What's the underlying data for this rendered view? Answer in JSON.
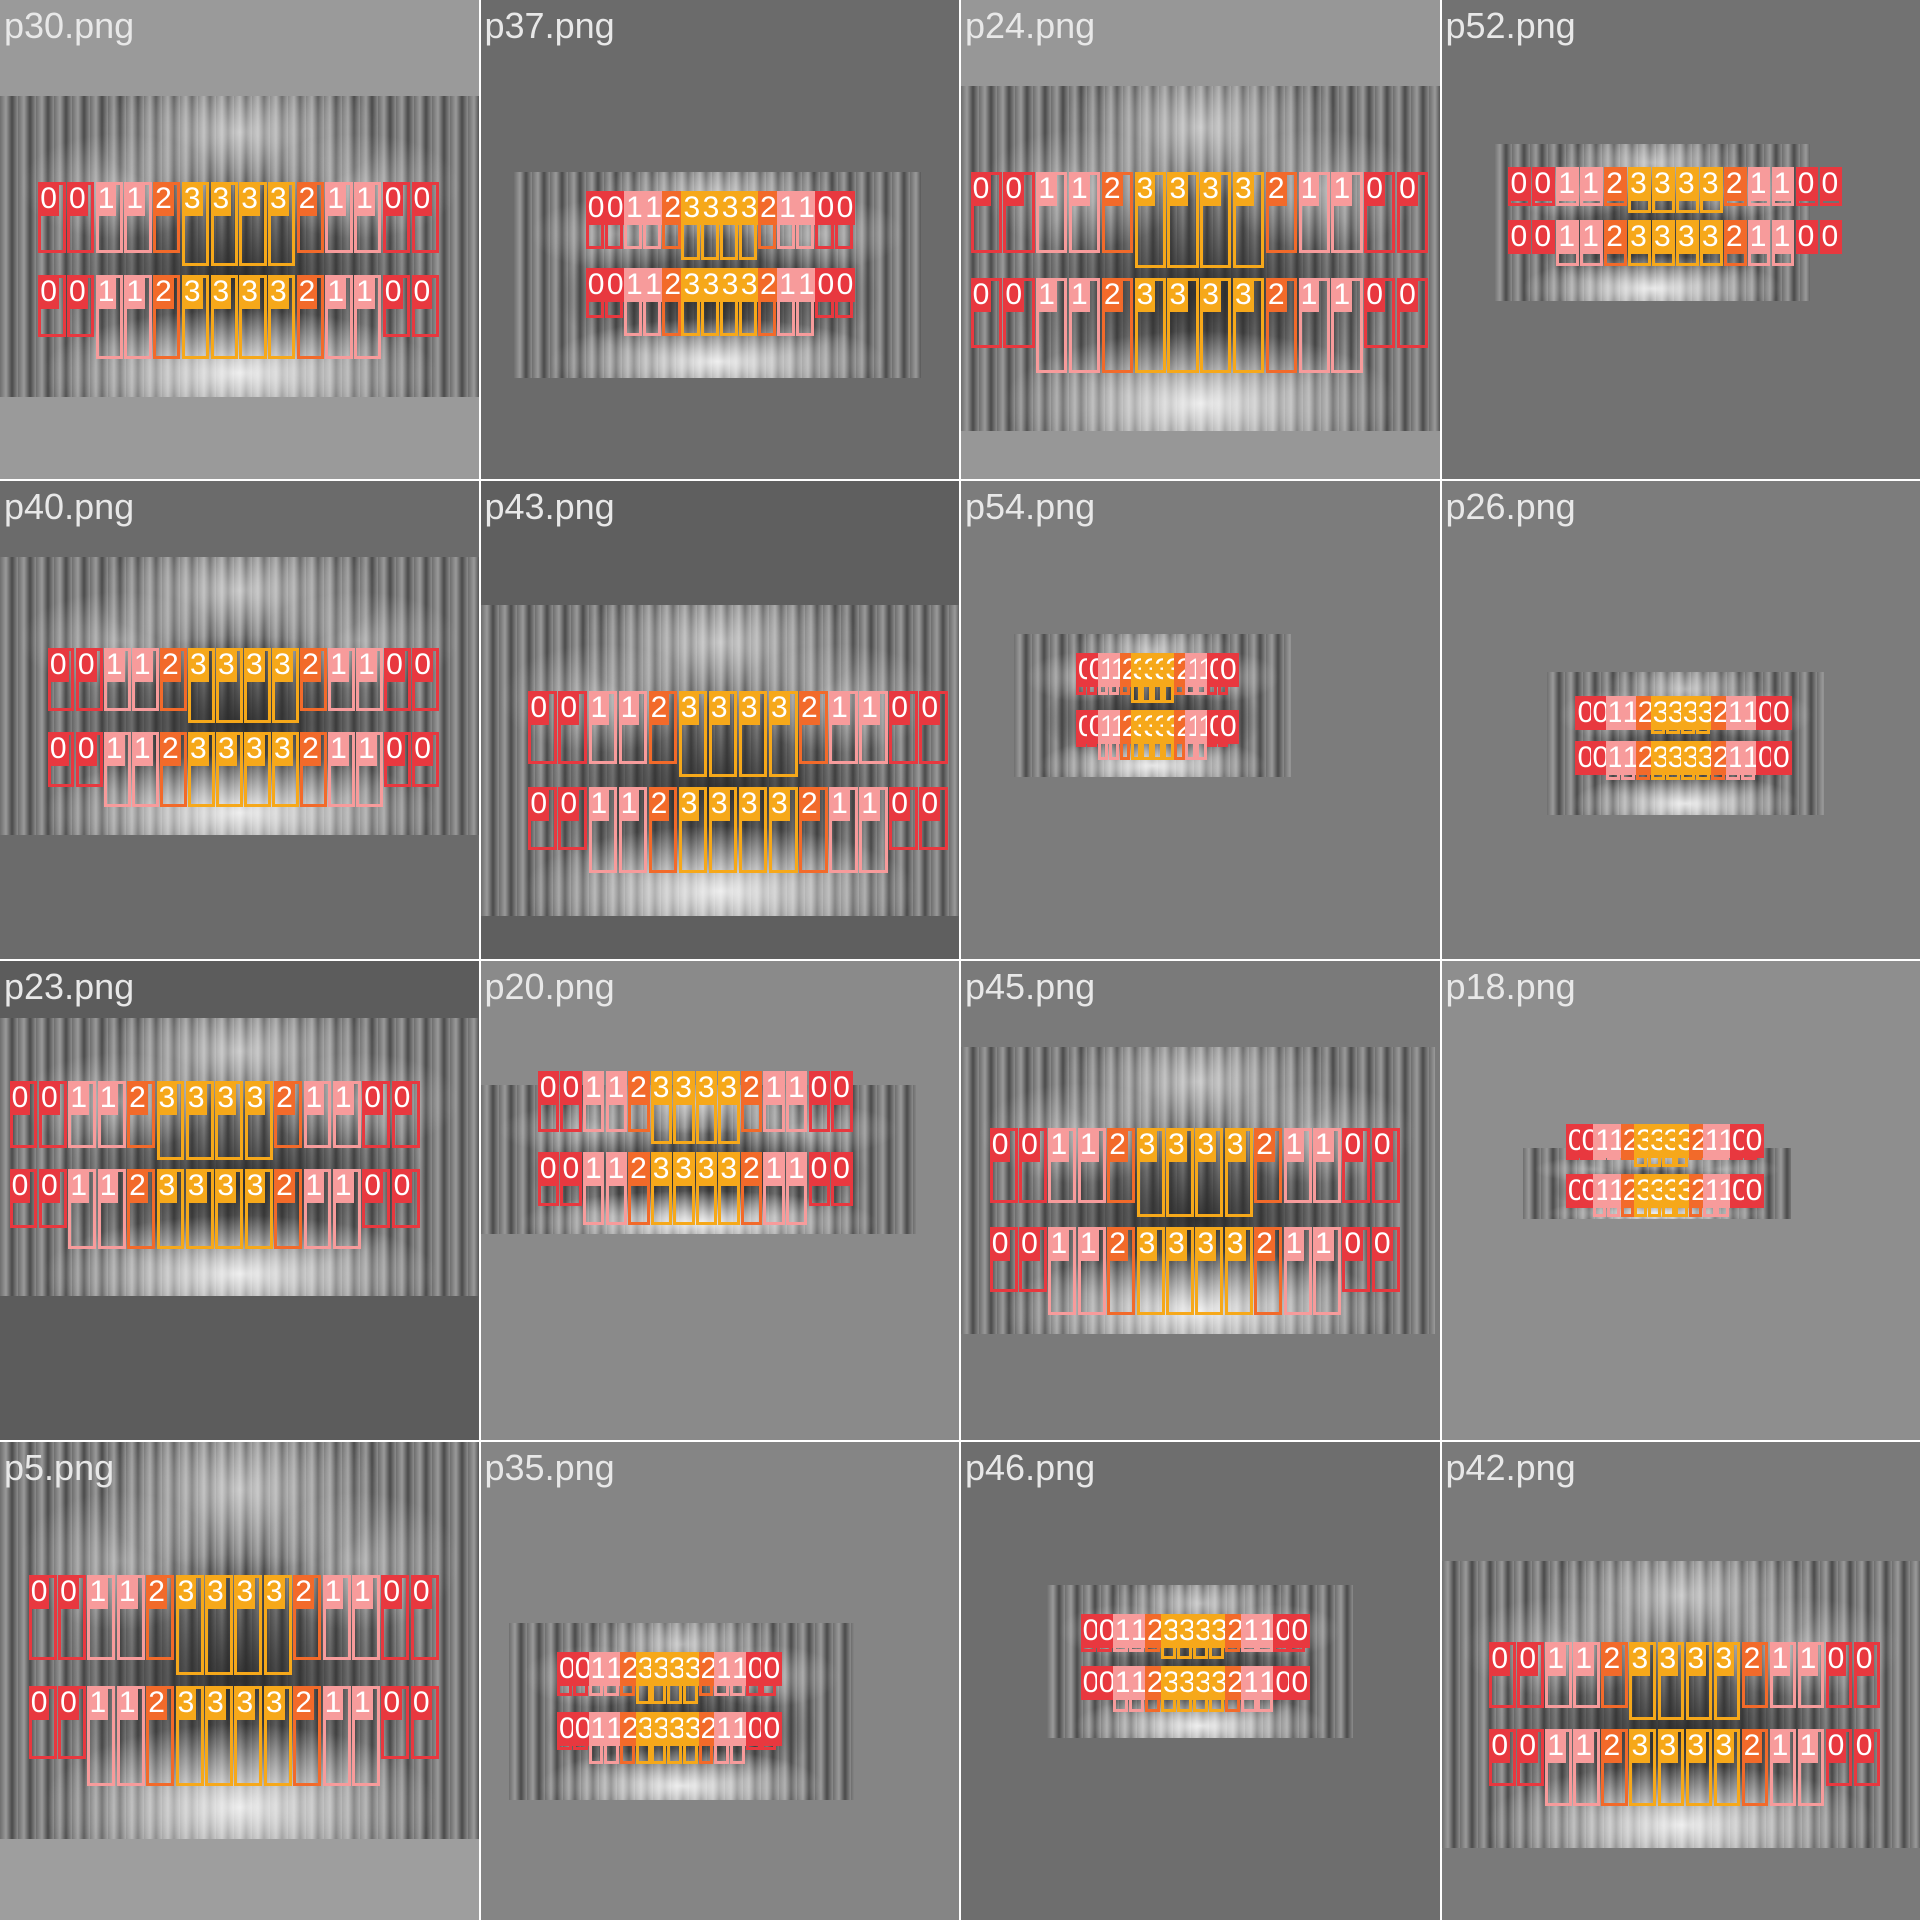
{
  "colors": {
    "class_0": "#e8383f",
    "class_1": "#f79b9b",
    "class_2": "#f26a2a",
    "class_3": "#f6a81a"
  },
  "tiles": [
    {
      "label": "p30.png",
      "bg": "#9a9a9a"
    },
    {
      "label": "p37.png",
      "bg": "#6b6b6b"
    },
    {
      "label": "p24.png",
      "bg": "#979797"
    },
    {
      "label": "p52.png",
      "bg": "#727272"
    },
    {
      "label": "p40.png",
      "bg": "#6b6b6b"
    },
    {
      "label": "p43.png",
      "bg": "#5f5f5f"
    },
    {
      "label": "p54.png",
      "bg": "#7c7c7c"
    },
    {
      "label": "p26.png",
      "bg": "#7c7c7c"
    },
    {
      "label": "p23.png",
      "bg": "#5c5c5c"
    },
    {
      "label": "p20.png",
      "bg": "#8a8a8a"
    },
    {
      "label": "p45.png",
      "bg": "#7a7a7a"
    },
    {
      "label": "p18.png",
      "bg": "#8e8e8e"
    },
    {
      "label": "p5.png",
      "bg": "#9e9e9e"
    },
    {
      "label": "p35.png",
      "bg": "#858585"
    },
    {
      "label": "p46.png",
      "bg": "#6e6e6e"
    },
    {
      "label": "p42.png",
      "bg": "#7a7a7a"
    }
  ],
  "class_labels": [
    "0",
    "1",
    "2",
    "3"
  ]
}
